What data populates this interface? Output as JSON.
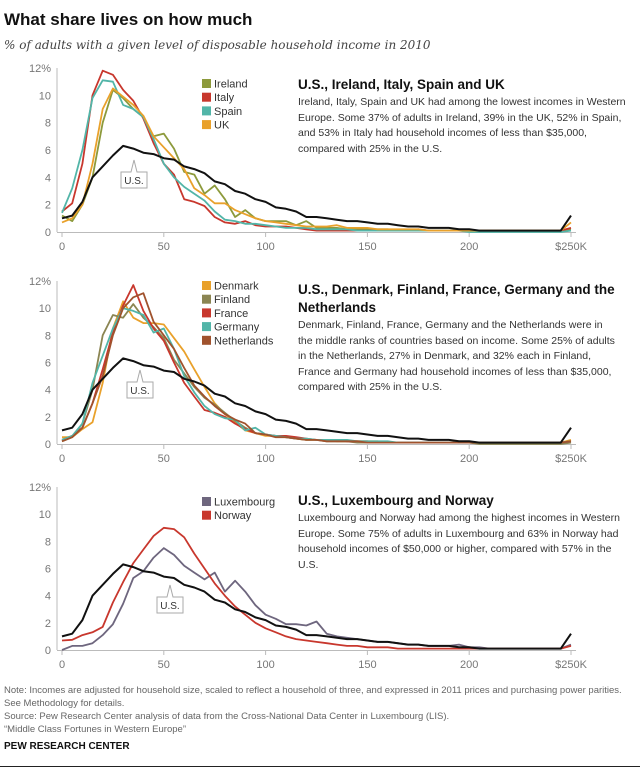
{
  "title": "What share lives on how much",
  "subtitle": "% of adults with a given level of disposable household income in 2010",
  "colors": {
    "us": "#111111",
    "ireland": "#8d9a3c",
    "italy": "#c8372d",
    "spain": "#52b5a8",
    "uk": "#e9a12b",
    "denmark": "#e9a12b",
    "finland": "#8b8552",
    "france": "#c8372d",
    "germany": "#52b5a8",
    "netherlands": "#a0522d",
    "luxembourg": "#6e667e",
    "norway": "#c8372d",
    "axis": "#bbbbbb",
    "tick_text": "#777777"
  },
  "chart_data": [
    {
      "type": "line",
      "heading": "U.S., Ireland, Italy, Spain and UK",
      "body": "Ireland, Italy, Spain and UK had among the lowest incomes in Western Europe. Some 37% of adults in Ireland, 39% in the UK, 52% in Spain, and 53% in Italy had household incomes of less than $35,000, compared with 25% in the U.S.",
      "x_start": 0,
      "x_step": 5,
      "xlim": [
        0,
        250
      ],
      "ylim": [
        0,
        12
      ],
      "x_ticks": [
        0,
        50,
        100,
        150,
        200,
        250
      ],
      "x_tick_labels": [
        "0",
        "50",
        "100",
        "150",
        "200",
        "$250K"
      ],
      "y_ticks": [
        0,
        2,
        4,
        6,
        8,
        10,
        12
      ],
      "y_tick_labels": [
        "0",
        "2",
        "4",
        "6",
        "8",
        "10",
        "12%"
      ],
      "us_label": "U.S.",
      "series": [
        {
          "name": "Ireland",
          "color": "#8d9a3c",
          "values": [
            1.2,
            0.8,
            2.0,
            4.0,
            8.0,
            10.4,
            9.8,
            9.0,
            8.4,
            7.0,
            7.2,
            6.1,
            4.4,
            4.2,
            2.8,
            3.4,
            2.4,
            1.1,
            1.6,
            1.0,
            0.8,
            0.8,
            0.8,
            0.5,
            0.8,
            0.3,
            0.3,
            0.3,
            0.2,
            0.2,
            0.2,
            0.2,
            0.2,
            0.1,
            0.1,
            0.1,
            0.1,
            0.1,
            0.1,
            0.1,
            0.1,
            0.1,
            0.1,
            0.1,
            0.1,
            0.1,
            0.1,
            0.1,
            0.1,
            0.1,
            0.2
          ]
        },
        {
          "name": "Italy",
          "color": "#c8372d",
          "values": [
            1.5,
            2.1,
            5.0,
            10.0,
            11.8,
            11.5,
            10.4,
            9.6,
            8.3,
            6.5,
            5.0,
            4.2,
            2.4,
            2.2,
            1.9,
            1.1,
            0.7,
            0.6,
            0.8,
            0.5,
            0.4,
            0.4,
            0.4,
            0.3,
            0.2,
            0.1,
            0.1,
            0.1,
            0.1,
            0.1,
            0.1,
            0.1,
            0.1,
            0.1,
            0.1,
            0.2,
            0.1,
            0.1,
            0.1,
            0.1,
            0.1,
            0.1,
            0.1,
            0.1,
            0.1,
            0.1,
            0.1,
            0.1,
            0.1,
            0.1,
            0.3
          ]
        },
        {
          "name": "Spain",
          "color": "#52b5a8",
          "values": [
            1.4,
            3.2,
            6.0,
            9.8,
            11.1,
            11.0,
            9.3,
            9.0,
            8.4,
            6.8,
            5.0,
            4.0,
            3.3,
            2.8,
            2.3,
            1.5,
            0.9,
            0.8,
            0.6,
            0.6,
            0.5,
            0.4,
            0.3,
            0.3,
            0.3,
            0.2,
            0.2,
            0.2,
            0.2,
            0.1,
            0.1,
            0.1,
            0.1,
            0.1,
            0.1,
            0.1,
            0.1,
            0.1,
            0.1,
            0.1,
            0.0,
            0.0,
            0.0,
            0.0,
            0.0,
            0.0,
            0.0,
            0.0,
            0.0,
            0.0,
            0.1
          ]
        },
        {
          "name": "UK",
          "color": "#e9a12b",
          "values": [
            0.7,
            1.0,
            2.0,
            5.0,
            9.0,
            10.5,
            9.9,
            9.3,
            8.5,
            7.0,
            6.2,
            5.4,
            4.6,
            3.2,
            2.7,
            2.1,
            2.1,
            1.6,
            1.3,
            1.0,
            0.8,
            0.7,
            0.6,
            0.5,
            0.4,
            0.4,
            0.4,
            0.5,
            0.3,
            0.3,
            0.3,
            0.2,
            0.2,
            0.2,
            0.2,
            0.2,
            0.1,
            0.1,
            0.1,
            0.1,
            0.1,
            0.1,
            0.1,
            0.1,
            0.1,
            0.1,
            0.1,
            0.1,
            0.1,
            0.1,
            0.7
          ]
        }
      ],
      "us_values": [
        1.0,
        1.2,
        2.2,
        4.0,
        4.8,
        5.6,
        6.3,
        6.1,
        5.8,
        5.7,
        5.4,
        5.3,
        4.8,
        4.6,
        4.3,
        3.7,
        3.5,
        3.0,
        2.8,
        2.4,
        2.2,
        1.8,
        1.7,
        1.5,
        1.1,
        1.1,
        1.0,
        0.9,
        0.8,
        0.8,
        0.7,
        0.6,
        0.6,
        0.5,
        0.4,
        0.4,
        0.3,
        0.3,
        0.3,
        0.2,
        0.2,
        0.1,
        0.1,
        0.1,
        0.1,
        0.1,
        0.1,
        0.1,
        0.1,
        0.1,
        1.2
      ]
    },
    {
      "type": "line",
      "heading": "U.S., Denmark, Finland, France, Germany and the Netherlands",
      "body": "Denmark, Finland, France, Germany and the Netherlands were in the middle ranks of countries based on income. Some 25% of adults in the Netherlands, 27% in Denmark, and 32% each in Finland, France and Germany had household incomes of less than $35,000, compared with 25% in the U.S.",
      "x_start": 0,
      "x_step": 5,
      "xlim": [
        0,
        250
      ],
      "ylim": [
        0,
        12
      ],
      "x_ticks": [
        0,
        50,
        100,
        150,
        200,
        250
      ],
      "x_tick_labels": [
        "0",
        "50",
        "100",
        "150",
        "200",
        "$250K"
      ],
      "y_ticks": [
        0,
        2,
        4,
        6,
        8,
        10,
        12
      ],
      "y_tick_labels": [
        "0",
        "2",
        "4",
        "6",
        "8",
        "10",
        "12%"
      ],
      "us_label": "U.S.",
      "series": [
        {
          "name": "Denmark",
          "color": "#e9a12b",
          "values": [
            0.5,
            0.5,
            1.1,
            1.6,
            4.5,
            8.5,
            10.5,
            9.3,
            8.9,
            8.9,
            8.8,
            7.8,
            6.8,
            5.5,
            4.2,
            3.0,
            2.2,
            1.6,
            1.0,
            0.8,
            0.6,
            0.6,
            0.5,
            0.4,
            0.3,
            0.3,
            0.3,
            0.2,
            0.2,
            0.2,
            0.2,
            0.2,
            0.1,
            0.1,
            0.1,
            0.1,
            0.1,
            0.1,
            0.1,
            0.1,
            0.1,
            0.1,
            0.1,
            0.1,
            0.1,
            0.1,
            0.1,
            0.1,
            0.1,
            0.1,
            0.3
          ]
        },
        {
          "name": "Finland",
          "color": "#8b8552",
          "values": [
            0.2,
            0.5,
            1.5,
            4.0,
            8.0,
            9.5,
            9.3,
            10.3,
            9.3,
            8.6,
            7.8,
            6.2,
            5.2,
            4.2,
            3.4,
            2.9,
            2.3,
            1.7,
            1.2,
            0.8,
            0.7,
            0.6,
            0.5,
            0.4,
            0.3,
            0.3,
            0.2,
            0.2,
            0.2,
            0.1,
            0.1,
            0.1,
            0.1,
            0.1,
            0.1,
            0.1,
            0.1,
            0.1,
            0.1,
            0.1,
            0.1,
            0.0,
            0.0,
            0.0,
            0.0,
            0.0,
            0.0,
            0.0,
            0.0,
            0.0,
            0.1
          ]
        },
        {
          "name": "France",
          "color": "#c8372d",
          "values": [
            0.3,
            0.6,
            1.2,
            3.0,
            5.5,
            8.2,
            10.2,
            11.7,
            9.8,
            8.5,
            7.6,
            6.0,
            4.5,
            3.5,
            2.5,
            2.3,
            2.0,
            1.5,
            1.1,
            0.8,
            0.7,
            0.6,
            0.6,
            0.5,
            0.4,
            0.3,
            0.3,
            0.3,
            0.2,
            0.2,
            0.2,
            0.1,
            0.1,
            0.1,
            0.1,
            0.1,
            0.1,
            0.1,
            0.1,
            0.1,
            0.1,
            0.1,
            0.1,
            0.1,
            0.1,
            0.1,
            0.1,
            0.1,
            0.1,
            0.1,
            0.2
          ]
        },
        {
          "name": "Germany",
          "color": "#52b5a8",
          "values": [
            0.3,
            0.6,
            1.5,
            4.5,
            6.5,
            8.5,
            10.0,
            9.8,
            9.5,
            8.2,
            8.5,
            7.0,
            5.0,
            3.8,
            2.8,
            2.2,
            1.9,
            1.8,
            1.0,
            1.2,
            0.7,
            0.6,
            0.5,
            0.4,
            0.4,
            0.3,
            0.3,
            0.3,
            0.3,
            0.2,
            0.2,
            0.2,
            0.2,
            0.1,
            0.1,
            0.1,
            0.1,
            0.1,
            0.1,
            0.1,
            0.1,
            0.1,
            0.1,
            0.1,
            0.1,
            0.1,
            0.1,
            0.1,
            0.1,
            0.1,
            0.2
          ]
        },
        {
          "name": "Netherlands",
          "color": "#a0522d",
          "values": [
            0.2,
            0.5,
            1.2,
            3.0,
            5.0,
            8.0,
            10.0,
            10.8,
            11.1,
            9.0,
            8.0,
            7.0,
            5.6,
            4.3,
            3.5,
            2.8,
            2.2,
            1.8,
            1.5,
            0.8,
            0.7,
            0.5,
            0.5,
            0.4,
            0.3,
            0.3,
            0.2,
            0.2,
            0.2,
            0.2,
            0.1,
            0.1,
            0.1,
            0.1,
            0.1,
            0.1,
            0.1,
            0.1,
            0.1,
            0.1,
            0.1,
            0.1,
            0.1,
            0.1,
            0.1,
            0.1,
            0.1,
            0.1,
            0.1,
            0.1,
            0.2
          ]
        }
      ],
      "us_values": [
        1.0,
        1.2,
        2.2,
        4.0,
        4.8,
        5.6,
        6.3,
        6.1,
        5.8,
        5.7,
        5.4,
        5.3,
        4.8,
        4.6,
        4.3,
        3.7,
        3.5,
        3.0,
        2.8,
        2.4,
        2.2,
        1.8,
        1.7,
        1.5,
        1.1,
        1.1,
        1.0,
        0.9,
        0.8,
        0.8,
        0.7,
        0.6,
        0.6,
        0.5,
        0.4,
        0.4,
        0.3,
        0.3,
        0.3,
        0.2,
        0.2,
        0.1,
        0.1,
        0.1,
        0.1,
        0.1,
        0.1,
        0.1,
        0.1,
        0.1,
        1.2
      ]
    },
    {
      "type": "line",
      "heading": "U.S., Luxembourg and Norway",
      "body": "Luxembourg and Norway had among the highest incomes in Western Europe. Some 75% of adults in Luxembourg and 63% in Norway had household incomes of $50,000 or higher, compared with 57% in the U.S.",
      "x_start": 0,
      "x_step": 5,
      "xlim": [
        0,
        250
      ],
      "ylim": [
        0,
        12
      ],
      "x_ticks": [
        0,
        50,
        100,
        150,
        200,
        250
      ],
      "x_tick_labels": [
        "0",
        "50",
        "100",
        "150",
        "200",
        "$250K"
      ],
      "y_ticks": [
        0,
        2,
        4,
        6,
        8,
        10,
        12
      ],
      "y_tick_labels": [
        "0",
        "2",
        "4",
        "6",
        "8",
        "10",
        "12%"
      ],
      "us_label": "U.S.",
      "series": [
        {
          "name": "Luxembourg",
          "color": "#6e667e",
          "values": [
            0.0,
            0.3,
            0.3,
            0.5,
            1.1,
            1.9,
            3.4,
            5.3,
            5.8,
            6.8,
            7.5,
            7.0,
            6.2,
            5.7,
            5.2,
            5.7,
            4.3,
            5.1,
            4.3,
            3.3,
            2.6,
            2.3,
            1.9,
            1.9,
            1.8,
            2.1,
            1.2,
            1.0,
            0.9,
            0.8,
            0.7,
            0.6,
            0.6,
            0.5,
            0.4,
            0.4,
            0.3,
            0.3,
            0.3,
            0.4,
            0.2,
            0.2,
            0.1,
            0.1,
            0.1,
            0.1,
            0.1,
            0.1,
            0.1,
            0.1,
            0.4
          ]
        },
        {
          "name": "Norway",
          "color": "#c8372d",
          "values": [
            0.7,
            0.75,
            1.1,
            1.3,
            1.7,
            3.5,
            5.0,
            6.4,
            7.4,
            8.4,
            9.0,
            8.9,
            8.3,
            7.1,
            6.0,
            4.9,
            4.0,
            3.2,
            2.6,
            2.0,
            1.6,
            1.3,
            1.0,
            0.8,
            0.7,
            0.6,
            0.5,
            0.4,
            0.3,
            0.3,
            0.2,
            0.2,
            0.2,
            0.1,
            0.1,
            0.1,
            0.1,
            0.1,
            0.1,
            0.1,
            0.1,
            0.1,
            0.1,
            0.1,
            0.1,
            0.1,
            0.1,
            0.1,
            0.1,
            0.1,
            0.3
          ]
        }
      ],
      "us_values": [
        1.0,
        1.2,
        2.2,
        4.0,
        4.8,
        5.6,
        6.3,
        6.1,
        5.8,
        5.7,
        5.4,
        5.3,
        4.8,
        4.6,
        4.3,
        3.7,
        3.5,
        3.0,
        2.8,
        2.4,
        2.2,
        1.8,
        1.7,
        1.5,
        1.1,
        1.1,
        1.0,
        0.9,
        0.8,
        0.8,
        0.7,
        0.6,
        0.6,
        0.5,
        0.4,
        0.4,
        0.3,
        0.3,
        0.3,
        0.2,
        0.2,
        0.1,
        0.1,
        0.1,
        0.1,
        0.1,
        0.1,
        0.1,
        0.1,
        0.1,
        1.2
      ]
    }
  ],
  "footer": {
    "note": "Note: Incomes are adjusted for household size, scaled to reflect a household of three, and expressed in 2011 prices and purchasing power parities. See Methodology for details.",
    "source": "Source: Pew Research Center analysis of data from the Cross-National Data Center in Luxembourg (LIS).",
    "report": "“Middle Class Fortunes in Western Europe”",
    "brand": "PEW RESEARCH CENTER"
  }
}
